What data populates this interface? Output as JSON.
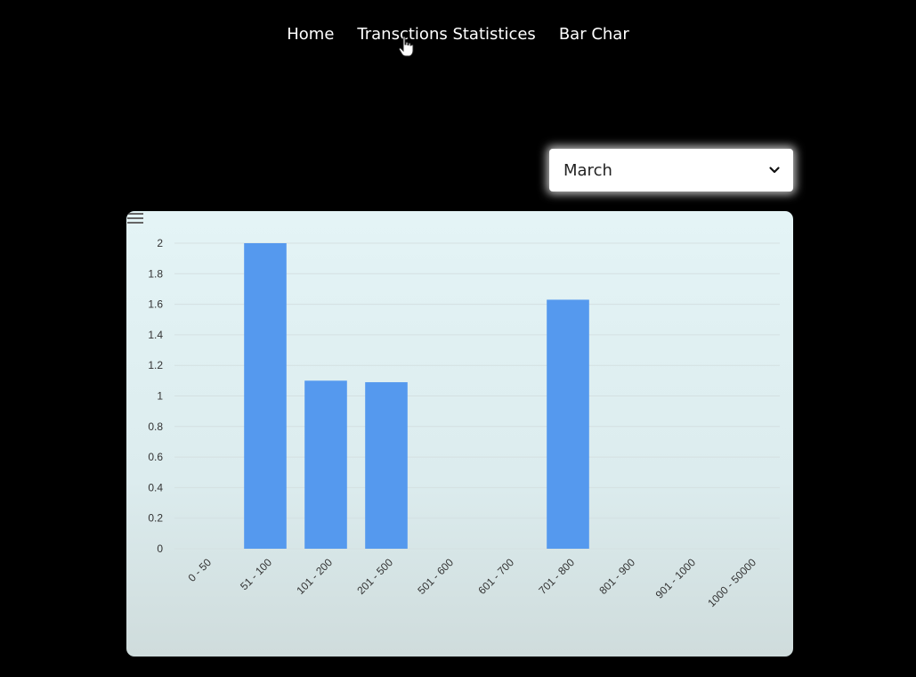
{
  "nav": {
    "items": [
      {
        "label": "Home"
      },
      {
        "label": "Transctions Statistices"
      },
      {
        "label": "Bar Char"
      }
    ]
  },
  "month_select": {
    "selected": "March"
  },
  "colors": {
    "bar": "#5599ee",
    "grid": "#d4e0e1",
    "card_bg": "#e4f4f6"
  },
  "chart_data": {
    "type": "bar",
    "categories": [
      "0 - 50",
      "51 - 100",
      "101 - 200",
      "201 - 500",
      "501 - 600",
      "601 - 700",
      "701 - 800",
      "801 - 900",
      "901 - 1000",
      "1000 - 50000"
    ],
    "values": [
      0,
      2,
      1.1,
      1.09,
      0,
      0,
      1.63,
      0,
      0,
      0
    ],
    "yticks": [
      "0",
      "0.2",
      "0.4",
      "0.6",
      "0.8",
      "1",
      "1.2",
      "1.4",
      "1.6",
      "1.8",
      "2"
    ],
    "ylim": [
      0,
      2
    ],
    "grid": true,
    "legend": "none"
  }
}
